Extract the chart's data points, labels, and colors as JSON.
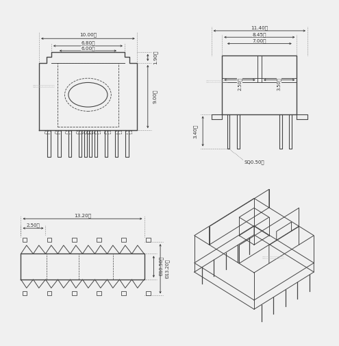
{
  "bg_color": "#f0f0f0",
  "line_color": "#444444",
  "dim_color": "#333333",
  "watermark": "东莓市超祁电子有限公司业务",
  "dims_topleft": {
    "A": "10.00Ⓐ",
    "B": "6.80Ⓑ",
    "C": "6.00Ⓒ",
    "D": "1.90ⓓ",
    "E": "9.00ⓔ"
  },
  "dims_topright": {
    "K": "11.40Ⓚ",
    "L": "8.45Ⓛ",
    "Dv": "7.00Ⓜ",
    "F": "3.40ⓕ",
    "G": "2.50Ⓠ",
    "H": "3.50Ⓡ",
    "pin": "SQ0.50Ⓛ"
  },
  "dims_bottomleft": {
    "M": "13.20Ⓜ",
    "N": "2.50Ⓝ",
    "P": "Ð10.50Ⓢ",
    "Q": "Ð13.20Ⓣ"
  }
}
